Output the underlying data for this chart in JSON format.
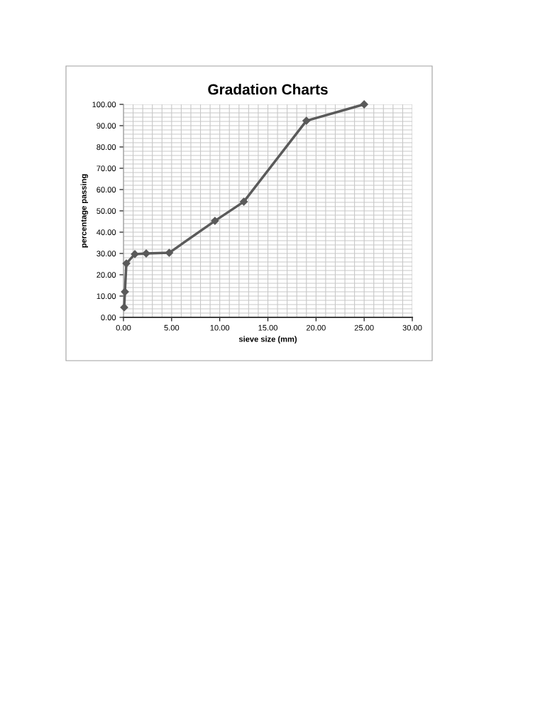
{
  "chart_data": {
    "type": "line",
    "title": "Gradation Charts",
    "xlabel": "sieve size (mm)",
    "ylabel": "percentage passing",
    "x": [
      0.075,
      0.15,
      0.3,
      1.18,
      2.36,
      4.75,
      9.5,
      12.5,
      19,
      25
    ],
    "series": [
      {
        "color": "#5a5a5a",
        "values": [
          4.7,
          12,
          25.3,
          29.7,
          30,
          30.3,
          45.3,
          54.3,
          92.3,
          100
        ]
      }
    ],
    "xlim": [
      0,
      30
    ],
    "xticks": [
      {
        "value": 0,
        "label": "0.00"
      },
      {
        "value": 5,
        "label": "5.00"
      },
      {
        "value": 10,
        "label": "10.00"
      },
      {
        "value": 15,
        "label": "15.00"
      },
      {
        "value": 20,
        "label": "20.00"
      },
      {
        "value": 25,
        "label": "25.00"
      },
      {
        "value": 30,
        "label": "30.00"
      }
    ],
    "ylim": [
      0,
      100
    ],
    "yticks": [
      {
        "value": 0,
        "label": "0.00"
      },
      {
        "value": 10,
        "label": "10.00"
      },
      {
        "value": 20,
        "label": "20.00"
      },
      {
        "value": 30,
        "label": "30.00"
      },
      {
        "value": 40,
        "label": "40.00"
      },
      {
        "value": 50,
        "label": "50.00"
      },
      {
        "value": 60,
        "label": "60.00"
      },
      {
        "value": 70,
        "label": "70.00"
      },
      {
        "value": 80,
        "label": "80.00"
      },
      {
        "value": 90,
        "label": "90.00"
      },
      {
        "value": 100,
        "label": "100.00"
      }
    ],
    "grid": true,
    "marker": "diamond",
    "line_style": "solid",
    "legend": false
  }
}
